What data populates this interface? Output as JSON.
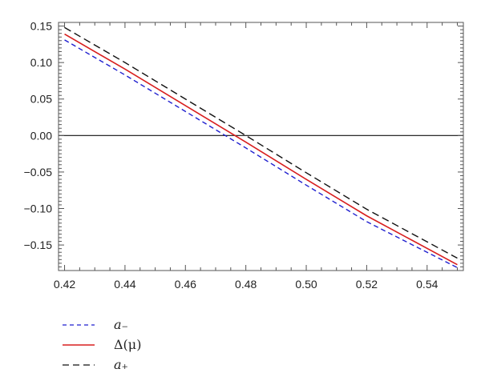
{
  "chart_data": {
    "type": "line",
    "title": "",
    "xlabel": "",
    "ylabel": "",
    "xlim": [
      0.418,
      0.552
    ],
    "ylim": [
      -0.185,
      0.155
    ],
    "xticks": [
      0.42,
      0.44,
      0.46,
      0.48,
      0.5,
      0.52,
      0.54
    ],
    "xtick_labels": [
      "0.42",
      "0.44",
      "0.46",
      "0.48",
      "0.50",
      "0.52",
      "0.54"
    ],
    "yticks": [
      0.15,
      0.1,
      0.05,
      0.0,
      -0.05,
      -0.1,
      -0.15
    ],
    "ytick_labels": [
      "0.15",
      "0.10",
      "0.05",
      "0.00",
      "−0.05",
      "−0.10",
      "−0.15"
    ],
    "grid": false,
    "frame": true,
    "zero_line": true,
    "legend_position": "bottom-left, below plot",
    "series": [
      {
        "name": "a₋",
        "color": "#1f1fcf",
        "dash": "dashed",
        "x": [
          0.42,
          0.44,
          0.46,
          0.48,
          0.5,
          0.52,
          0.55
        ],
        "y": [
          0.131,
          0.083,
          0.033,
          -0.017,
          -0.068,
          -0.118,
          -0.181
        ]
      },
      {
        "name": "Δ(μ)",
        "color": "#d81e1e",
        "dash": "solid",
        "x": [
          0.42,
          0.44,
          0.46,
          0.48,
          0.5,
          0.52,
          0.55
        ],
        "y": [
          0.139,
          0.091,
          0.041,
          -0.009,
          -0.06,
          -0.11,
          -0.177
        ]
      },
      {
        "name": "a₊",
        "color": "#111111",
        "dash": "dashed",
        "x": [
          0.42,
          0.44,
          0.46,
          0.48,
          0.5,
          0.52,
          0.55
        ],
        "y": [
          0.148,
          0.1,
          0.05,
          0.0,
          -0.051,
          -0.101,
          -0.168
        ]
      }
    ]
  },
  "legend": {
    "items": [
      {
        "label": "a₋",
        "color": "#1f1fcf",
        "dash": "dashed"
      },
      {
        "label": "Δ(μ)",
        "color": "#d81e1e",
        "dash": "solid"
      },
      {
        "label": "a₊",
        "color": "#111111",
        "dash": "dashed"
      }
    ]
  }
}
